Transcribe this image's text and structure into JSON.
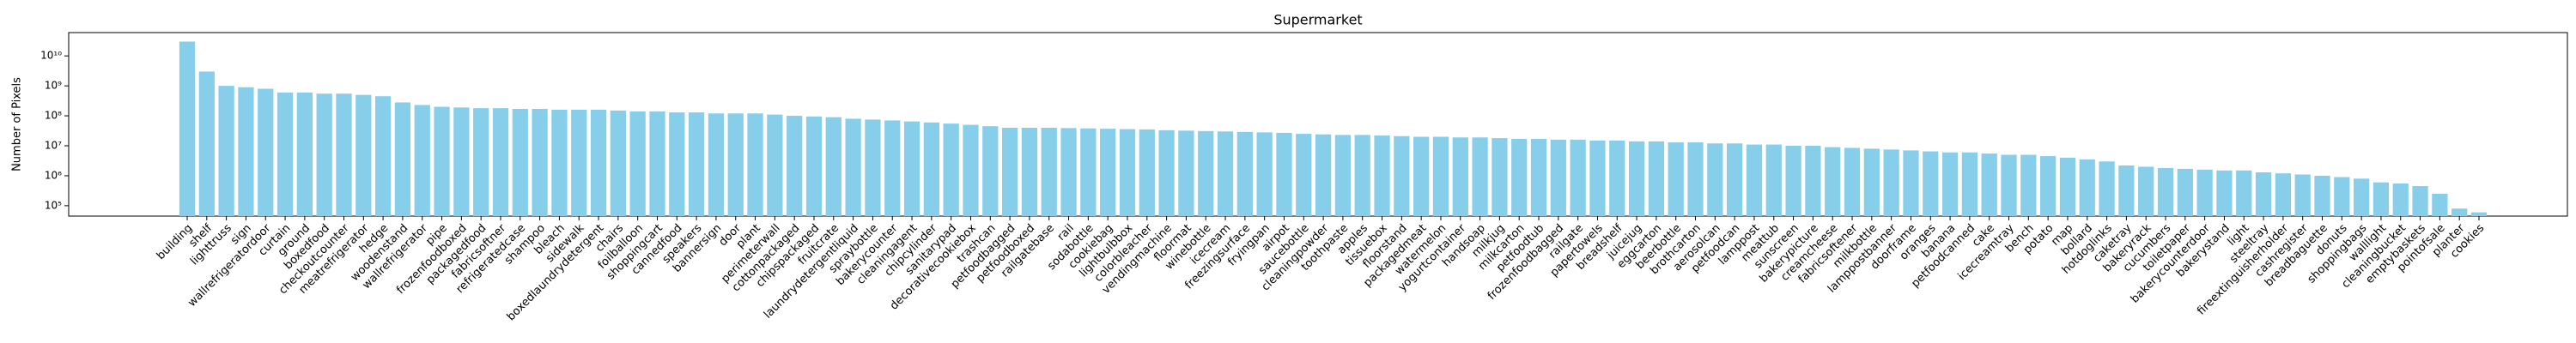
{
  "chart_data": {
    "type": "bar",
    "title": "Supermarket",
    "ylabel": "Number of Pixels",
    "log_scale": true,
    "color": "#87ceeb",
    "categories": [
      "building",
      "shelf",
      "lighttruss",
      "sign",
      "wallrefrigeratordoor",
      "curtain",
      "ground",
      "boxedfood",
      "checkoutcounter",
      "meatrefrigerator",
      "hedge",
      "woodenstand",
      "wallrefrigerator",
      "pipe",
      "frozenfoodboxed",
      "packagedfood",
      "fabricsoftner",
      "refrigeratedcase",
      "shampoo",
      "bleach",
      "sidewalk",
      "boxedlaundrydetergent",
      "chairs",
      "foilballoon",
      "shoppingcart",
      "cannedfood",
      "speakers",
      "bannersign",
      "door",
      "plant",
      "perimeterwall",
      "cottonpackaged",
      "chipspackaged",
      "fruitcrate",
      "laundrydetergentliquid",
      "spraybottle",
      "bakerycounter",
      "cleaningagent",
      "chipcylinder",
      "sanitarypad",
      "decorativecookiebox",
      "trashcan",
      "petfoodbagged",
      "petfoodboxed",
      "railgatebase",
      "rail",
      "sodabottle",
      "cookiebag",
      "lightbulbbox",
      "colorbleacher",
      "vendingmachine",
      "floormat",
      "winebottle",
      "icecream",
      "freezingsurface",
      "fryingpan",
      "airpot",
      "saucebottle",
      "cleaningpowder",
      "toothpaste",
      "apples",
      "tissuebox",
      "floorstand",
      "packagedmeat",
      "watermelon",
      "yogurtcontainer",
      "handsoap",
      "milkjug",
      "milkcarton",
      "petfoodtub",
      "frozenfoodbagged",
      "railgate",
      "papertowels",
      "breadshelf",
      "juicejug",
      "eggcarton",
      "beerbottle",
      "brothcarton",
      "aerosolcan",
      "petfoodcan",
      "lamppost",
      "meattub",
      "sunscreen",
      "bakerypicture",
      "creamcheese",
      "fabricsoftener",
      "milkbottle",
      "lamppostbanner",
      "doorframe",
      "oranges",
      "banana",
      "petfoodcanned",
      "cake",
      "icecreamtray",
      "bench",
      "potato",
      "map",
      "bollard",
      "hotdoglinks",
      "caketray",
      "bakeryrack",
      "cucumbers",
      "toiletpaper",
      "bakerycounterdoor",
      "bakerystand",
      "light",
      "steeltray",
      "fireextinguisherholder",
      "cashregister",
      "breadbaguette",
      "donuts",
      "shoppingbags",
      "walllight",
      "cleaningbucket",
      "emptybaskets",
      "pointofsale",
      "planter",
      "cookies"
    ],
    "values": [
      30000000000,
      3000000000,
      1000000000,
      900000000,
      800000000,
      600000000,
      600000000,
      550000000,
      550000000,
      500000000,
      450000000,
      280000000,
      230000000,
      200000000,
      190000000,
      180000000,
      180000000,
      170000000,
      170000000,
      160000000,
      160000000,
      160000000,
      150000000,
      140000000,
      140000000,
      130000000,
      130000000,
      120000000,
      120000000,
      120000000,
      110000000,
      100000000,
      95000000,
      90000000,
      80000000,
      75000000,
      70000000,
      65000000,
      60000000,
      55000000,
      50000000,
      45000000,
      40000000,
      40000000,
      40000000,
      39000000,
      38000000,
      37000000,
      36000000,
      35000000,
      33000000,
      32000000,
      31000000,
      30000000,
      29000000,
      28000000,
      27000000,
      25000000,
      24000000,
      23000000,
      23000000,
      22000000,
      21000000,
      20000000,
      20000000,
      19000000,
      19000000,
      18000000,
      17000000,
      17000000,
      16000000,
      16000000,
      15000000,
      15000000,
      14000000,
      14000000,
      13000000,
      13000000,
      12000000,
      12000000,
      11000000,
      11000000,
      10000000,
      10000000,
      9000000,
      8500000,
      8000000,
      7500000,
      7000000,
      6500000,
      6000000,
      6000000,
      5500000,
      5000000,
      5000000,
      4500000,
      4000000,
      3500000,
      3000000,
      2200000,
      2000000,
      1800000,
      1700000,
      1600000,
      1500000,
      1500000,
      1300000,
      1200000,
      1100000,
      1000000,
      900000,
      800000,
      600000,
      550000,
      450000,
      250000,
      80000,
      60000
    ],
    "ylim": [
      45000,
      60000000000
    ],
    "yticks": [
      {
        "value": 100000,
        "label": "10⁵"
      },
      {
        "value": 1000000,
        "label": "10⁶"
      },
      {
        "value": 10000000,
        "label": "10⁷"
      },
      {
        "value": 100000000,
        "label": "10⁸"
      },
      {
        "value": 1000000000,
        "label": "10⁹"
      },
      {
        "value": 10000000000,
        "label": "10¹⁰"
      }
    ]
  }
}
